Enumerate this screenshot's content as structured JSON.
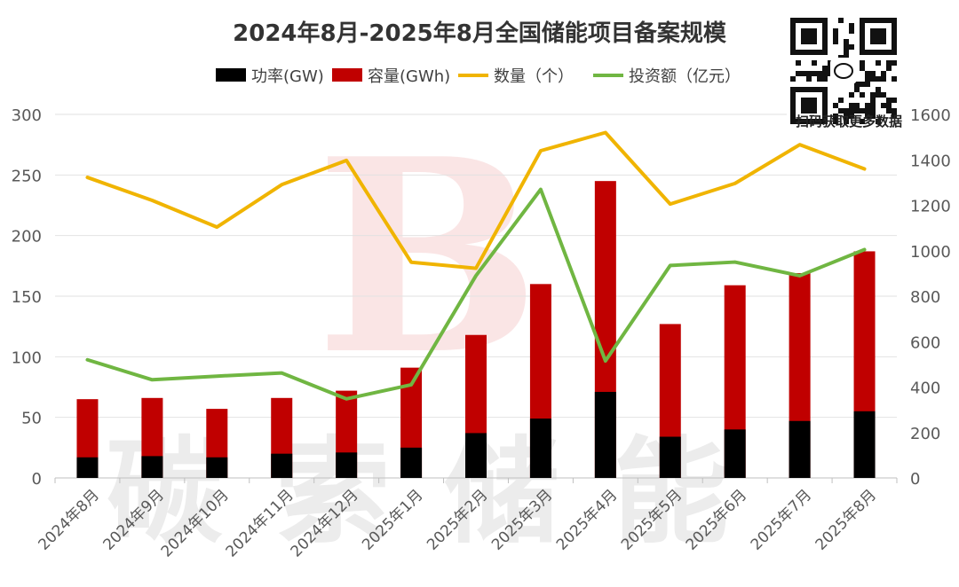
{
  "chart_data": {
    "type": "bar",
    "title": "2024年8月-2025年8月全国储能项目备案规模",
    "categories": [
      "2024年8月",
      "2024年9月",
      "2024年10月",
      "2024年11月",
      "2024年12月",
      "2025年1月",
      "2025年2月",
      "2025年3月",
      "2025年4月",
      "2025年5月",
      "2025年6月",
      "2025年7月",
      "2025年8月"
    ],
    "series": [
      {
        "name": "功率(GW)",
        "kind": "bar",
        "axis": "left",
        "color": "#000000",
        "values": [
          17,
          18,
          17,
          20,
          21,
          25,
          37,
          49,
          71,
          34,
          40,
          47,
          55
        ]
      },
      {
        "name": "容量(GWh)",
        "kind": "bar",
        "axis": "left",
        "color": "#c00000",
        "values": [
          65,
          66,
          57,
          66,
          72,
          91,
          118,
          160,
          245,
          127,
          159,
          169,
          187
        ]
      },
      {
        "name": "数量（个）",
        "kind": "line",
        "axis": "left",
        "color": "#f0b400",
        "values": [
          248,
          229,
          207,
          242,
          262,
          178,
          173,
          270,
          285,
          226,
          243,
          275,
          255
        ]
      },
      {
        "name": "投资额（亿元）",
        "kind": "line",
        "axis": "right",
        "color": "#70b642",
        "values": [
          520,
          432,
          448,
          462,
          348,
          410,
          890,
          1270,
          515,
          935,
          950,
          890,
          1005
        ]
      }
    ],
    "y_left": {
      "min": 0,
      "max": 300,
      "ticks": [
        0,
        50,
        100,
        150,
        200,
        250,
        300
      ]
    },
    "y_right": {
      "min": 0,
      "max": 1600,
      "ticks": [
        0,
        200,
        400,
        600,
        800,
        1000,
        1200,
        1400,
        1600
      ]
    },
    "grid": true,
    "legend_position": "top"
  },
  "watermark_text": "碳索储能",
  "qr_caption": "扫码获取更多数据"
}
